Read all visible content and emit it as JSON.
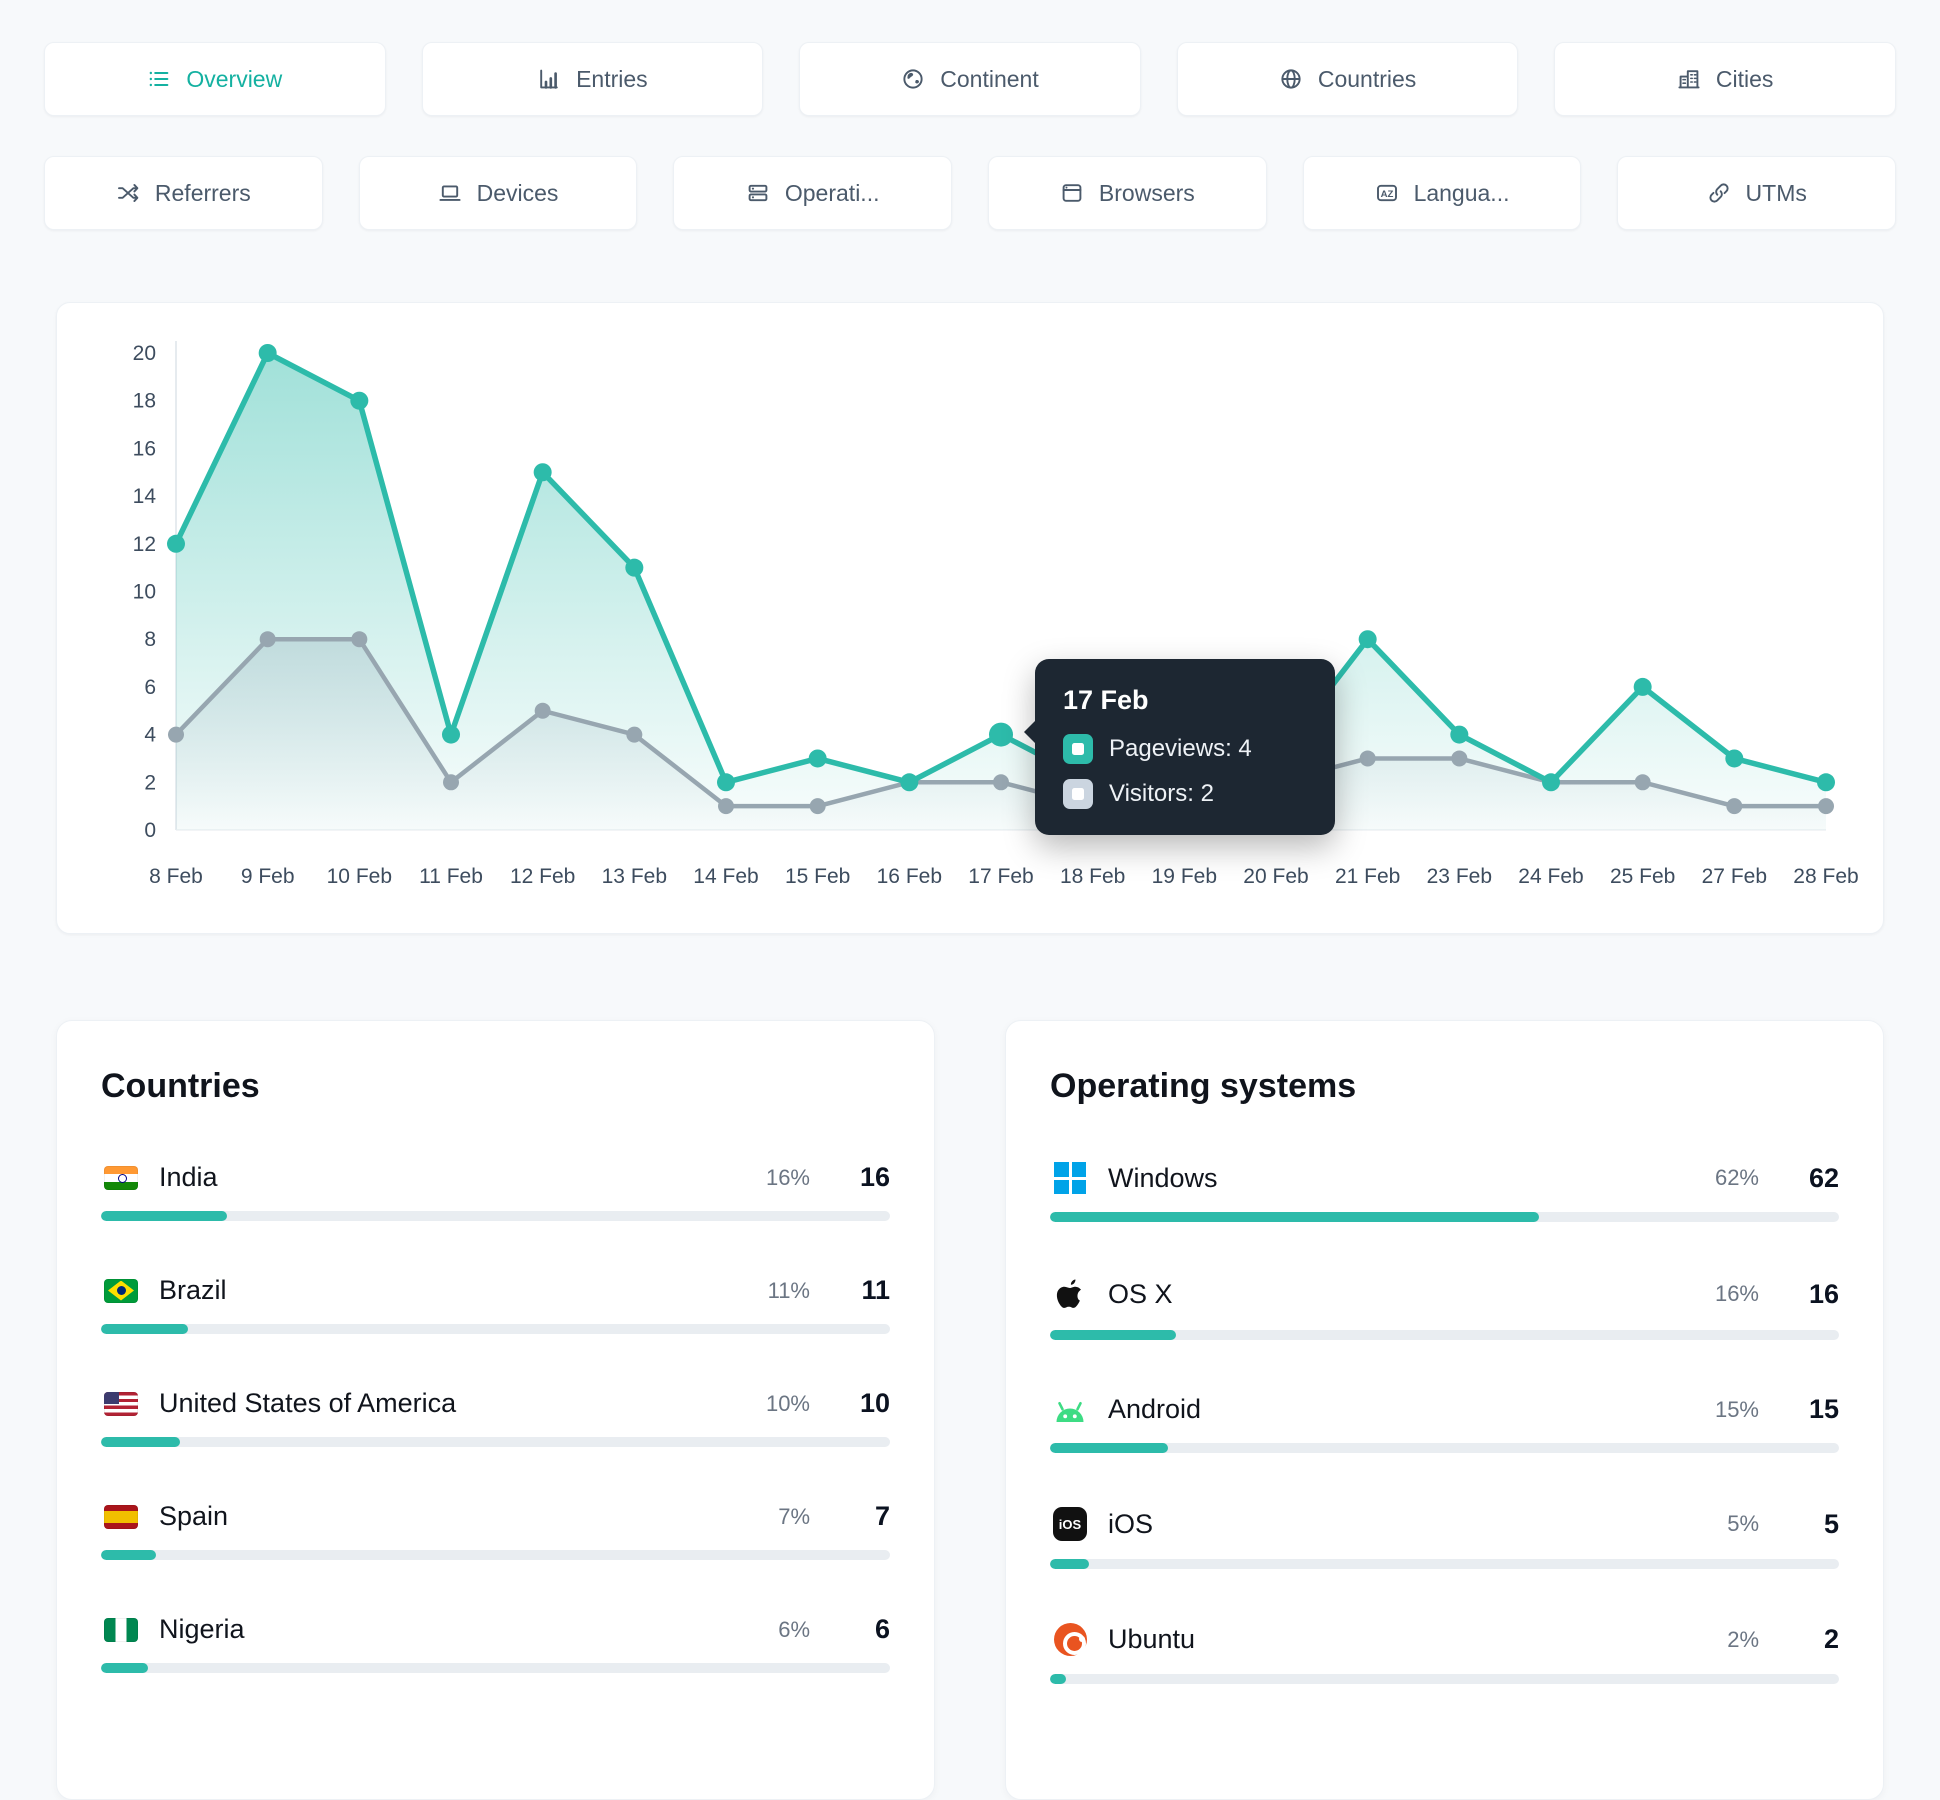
{
  "accent": "#2dbbaa",
  "tabs_row1": [
    {
      "label": "Overview",
      "active": true
    },
    {
      "label": "Entries",
      "active": false
    },
    {
      "label": "Continent",
      "active": false
    },
    {
      "label": "Countries",
      "active": false
    },
    {
      "label": "Cities",
      "active": false
    }
  ],
  "tabs_row2": [
    {
      "label": "Referrers",
      "active": false
    },
    {
      "label": "Devices",
      "active": false
    },
    {
      "label": "Operati...",
      "active": false
    },
    {
      "label": "Browsers",
      "active": false
    },
    {
      "label": "Langua...",
      "active": false
    },
    {
      "label": "UTMs",
      "active": false
    }
  ],
  "chart_data": {
    "type": "line",
    "categories": [
      "8 Feb",
      "9 Feb",
      "10 Feb",
      "11 Feb",
      "12 Feb",
      "13 Feb",
      "14 Feb",
      "15 Feb",
      "16 Feb",
      "17 Feb",
      "18 Feb",
      "19 Feb",
      "20 Feb",
      "21 Feb",
      "23 Feb",
      "24 Feb",
      "25 Feb",
      "27 Feb",
      "28 Feb"
    ],
    "series": [
      {
        "name": "Pageviews",
        "values": [
          12,
          20,
          18,
          4,
          15,
          11,
          2,
          3,
          2,
          4,
          2,
          2,
          3,
          8,
          4,
          2,
          6,
          3,
          2
        ]
      },
      {
        "name": "Visitors",
        "values": [
          4,
          8,
          8,
          2,
          5,
          4,
          1,
          1,
          2,
          2,
          1,
          1,
          2,
          3,
          3,
          2,
          2,
          1,
          1
        ]
      }
    ],
    "title": "",
    "xlabel": "",
    "ylabel": "",
    "ylim": [
      0,
      20
    ],
    "ytick_step": 2,
    "grid": false,
    "legend_position": "none",
    "active_index": 9,
    "colors": {
      "pageviews": "#2dbbaa",
      "visitors": "#97a6b0"
    }
  },
  "tooltip": {
    "title": "17 Feb",
    "rows": [
      {
        "label": "Pageviews: 4",
        "color": "#2dbbaa"
      },
      {
        "label": "Visitors: 2",
        "color": "#cbd5e0"
      }
    ]
  },
  "countries_card": {
    "title": "Countries",
    "rows": [
      {
        "name": "India",
        "percent": "16%",
        "value": "16",
        "pct": 16
      },
      {
        "name": "Brazil",
        "percent": "11%",
        "value": "11",
        "pct": 11
      },
      {
        "name": "United States of America",
        "percent": "10%",
        "value": "10",
        "pct": 10
      },
      {
        "name": "Spain",
        "percent": "7%",
        "value": "7",
        "pct": 7
      },
      {
        "name": "Nigeria",
        "percent": "6%",
        "value": "6",
        "pct": 6
      }
    ]
  },
  "os_card": {
    "title": "Operating systems",
    "rows": [
      {
        "name": "Windows",
        "percent": "62%",
        "value": "62",
        "pct": 62
      },
      {
        "name": "OS X",
        "percent": "16%",
        "value": "16",
        "pct": 16
      },
      {
        "name": "Android",
        "percent": "15%",
        "value": "15",
        "pct": 15
      },
      {
        "name": "iOS",
        "percent": "5%",
        "value": "5",
        "pct": 5
      },
      {
        "name": "Ubuntu",
        "percent": "2%",
        "value": "2",
        "pct": 2
      }
    ]
  }
}
